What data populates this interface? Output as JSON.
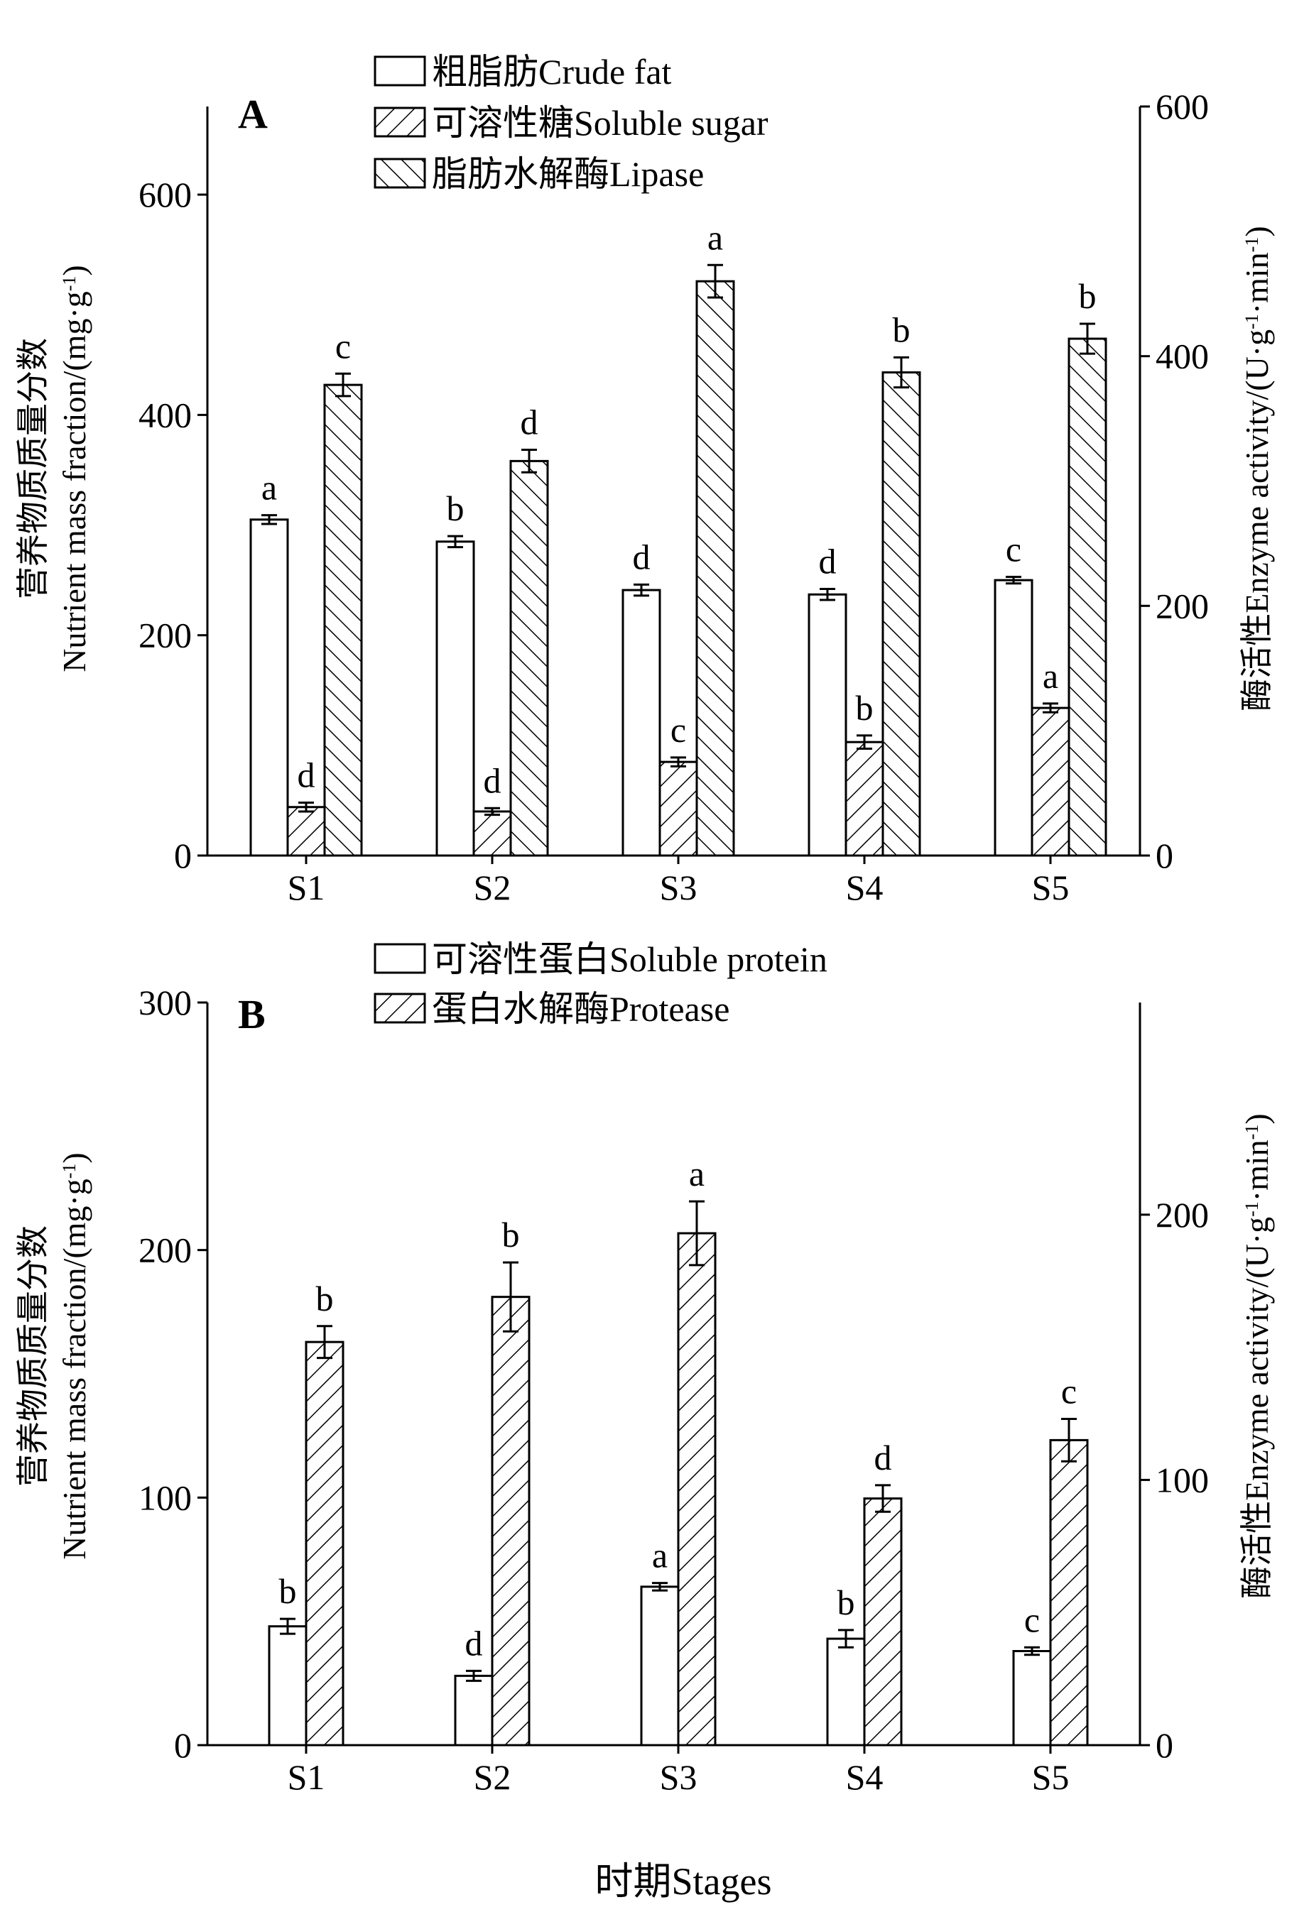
{
  "chart_data": [
    {
      "panel_label": "A",
      "type": "bar",
      "categories": [
        "S1",
        "S2",
        "S3",
        "S4",
        "S5"
      ],
      "left_axis": {
        "label_lines": [
          "营养物质质量分数",
          "Nutrient mass fraction/(mg·g",
          "-1",
          ")"
        ],
        "ylim": [
          0,
          680
        ],
        "ticks": [
          0,
          200,
          400,
          600
        ],
        "tick_labels": [
          "0",
          "200",
          "400",
          "600"
        ]
      },
      "right_axis": {
        "label_lines": [
          "酶活性Enzyme activity/(U·g",
          "-1",
          "·min",
          "-1",
          ")"
        ],
        "ylim": [
          0,
          600
        ],
        "ticks": [
          0,
          200,
          400,
          600
        ],
        "tick_labels": [
          "0",
          "200",
          "400",
          "600"
        ]
      },
      "series": [
        {
          "name": "粗脂肪Crude fat",
          "pattern": "none",
          "axis": "left",
          "values": [
            305,
            285,
            241,
            237,
            250
          ],
          "errors": [
            4,
            5,
            5,
            5,
            3
          ],
          "letters": [
            "a",
            "b",
            "d",
            "d",
            "c"
          ]
        },
        {
          "name": "可溶性糖Soluble sugar",
          "pattern": "forward",
          "axis": "left",
          "values": [
            44,
            40,
            85,
            103,
            134
          ],
          "errors": [
            4,
            3,
            4,
            6,
            4
          ],
          "letters": [
            "d",
            "d",
            "c",
            "b",
            "a"
          ]
        },
        {
          "name": "脂肪水解酶Lipase",
          "pattern": "backward",
          "axis": "right",
          "values": [
            377,
            316,
            460,
            387,
            414
          ],
          "errors": [
            9,
            9,
            13,
            12,
            12
          ],
          "letters": [
            "c",
            "d",
            "a",
            "b",
            "b"
          ]
        }
      ],
      "legend_position": "top-center"
    },
    {
      "panel_label": "B",
      "type": "bar",
      "categories": [
        "S1",
        "S2",
        "S3",
        "S4",
        "S5"
      ],
      "left_axis": {
        "label_lines": [
          "营养物质质量分数",
          "Nutrient mass fraction/(mg·g",
          "-1",
          ")"
        ],
        "ylim": [
          0,
          300
        ],
        "ticks": [
          0,
          100,
          200,
          300
        ],
        "tick_labels": [
          "0",
          "100",
          "200",
          "300"
        ]
      },
      "right_axis": {
        "label_lines": [
          "酶活性Enzyme activity/(U·g",
          "-1",
          "·min",
          "-1",
          ")"
        ],
        "ylim": [
          0,
          280
        ],
        "ticks": [
          0,
          100,
          200
        ],
        "tick_labels": [
          "0",
          "100",
          "200"
        ]
      },
      "series": [
        {
          "name": "可溶性蛋白Soluble protein",
          "pattern": "none",
          "axis": "left",
          "values": [
            48,
            28,
            64,
            43,
            38
          ],
          "errors": [
            3,
            2,
            1.5,
            3.5,
            1.5
          ],
          "letters": [
            "b",
            "d",
            "a",
            "b",
            "c"
          ]
        },
        {
          "name": "蛋白水解酶Protease",
          "pattern": "forward",
          "axis": "right",
          "values": [
            152,
            169,
            193,
            93,
            115
          ],
          "errors": [
            6,
            13,
            12,
            5,
            8
          ],
          "letters": [
            "b",
            "b",
            "a",
            "d",
            "c"
          ]
        }
      ],
      "legend_position": "top-center"
    }
  ],
  "x_axis_title": "时期Stages"
}
